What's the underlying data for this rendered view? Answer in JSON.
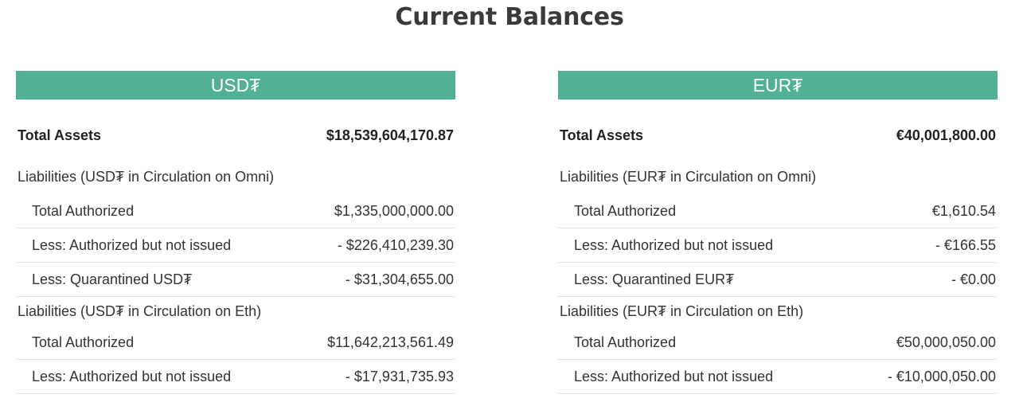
{
  "title": "Current Balances",
  "colors": {
    "header_bg": "#52b096",
    "header_text": "#ffffff",
    "divider": "#e2e2e2"
  },
  "panels": [
    {
      "header": "USD₮",
      "total_assets": {
        "label": "Total Assets",
        "value": "$18,539,604,170.87"
      },
      "groups": [
        {
          "title": "Liabilities (USD₮ in Circulation on Omni)",
          "rows": [
            {
              "label": "Total Authorized",
              "value": "$1,335,000,000.00"
            },
            {
              "label": "Less: Authorized but not issued",
              "value": "- $226,410,239.30"
            },
            {
              "label": "Less: Quarantined USD₮",
              "value": "- $31,304,655.00"
            }
          ]
        },
        {
          "title": "Liabilities (USD₮ in Circulation on Eth)",
          "rows": [
            {
              "label": "Total Authorized",
              "value": "$11,642,213,561.49"
            },
            {
              "label": "Less: Authorized but not issued",
              "value": "- $17,931,735.93"
            }
          ]
        }
      ]
    },
    {
      "header": "EUR₮",
      "total_assets": {
        "label": "Total Assets",
        "value": "€40,001,800.00"
      },
      "groups": [
        {
          "title": "Liabilities (EUR₮ in Circulation on Omni)",
          "rows": [
            {
              "label": "Total Authorized",
              "value": "€1,610.54"
            },
            {
              "label": "Less: Authorized but not issued",
              "value": "- €166.55"
            },
            {
              "label": "Less: Quarantined EUR₮",
              "value": "- €0.00"
            }
          ]
        },
        {
          "title": "Liabilities (EUR₮ in Circulation on Eth)",
          "rows": [
            {
              "label": "Total Authorized",
              "value": "€50,000,050.00"
            },
            {
              "label": "Less: Authorized but not issued",
              "value": "- €10,000,050.00"
            }
          ]
        }
      ]
    }
  ]
}
